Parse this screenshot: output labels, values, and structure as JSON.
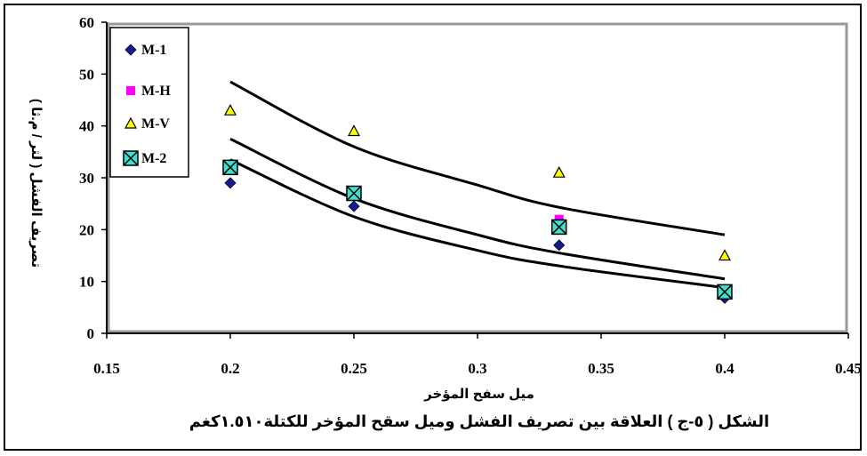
{
  "chart_data": {
    "type": "scatter",
    "title": "الشكل ( ٥-ج ) العلاقة بين تصريف الفشل وميل سقح المؤخر للكتلة١.٥١٠كغم",
    "xlabel": "ميل سفح المؤخر",
    "ylabel": "تصريف الفشل ( لتر / م.ثا )",
    "xlim": [
      0.15,
      0.45
    ],
    "ylim": [
      0,
      60
    ],
    "x_ticks": [
      "0.15",
      "0.2",
      "0.25",
      "0.3",
      "0.35",
      "0.4",
      "0.45"
    ],
    "y_ticks": [
      "0",
      "10",
      "20",
      "30",
      "40",
      "50",
      "60"
    ],
    "grid": false,
    "legend_position": "top-left",
    "series": [
      {
        "name": "M-1",
        "marker": "diamond",
        "color": "#1a1a8c",
        "x": [
          0.2,
          0.25,
          0.333,
          0.4
        ],
        "y": [
          29,
          24.5,
          17,
          6.8
        ]
      },
      {
        "name": "M-H",
        "marker": "square",
        "color": "#ff00ff",
        "x": [
          0.2,
          0.25,
          0.333,
          0.4
        ],
        "y": [
          32,
          27.5,
          22,
          8
        ]
      },
      {
        "name": "M-V",
        "marker": "triangle",
        "color": "#ffff00",
        "x": [
          0.2,
          0.25,
          0.333,
          0.4
        ],
        "y": [
          43,
          39,
          31,
          15
        ]
      },
      {
        "name": "M-2",
        "marker": "box-x",
        "color": "#40e0d0",
        "x": [
          0.2,
          0.25,
          0.333,
          0.4
        ],
        "y": [
          32,
          27,
          20.5,
          8
        ]
      }
    ],
    "trendlines": [
      {
        "x": [
          0.2,
          0.25,
          0.3,
          0.333,
          0.4
        ],
        "y": [
          48.5,
          36,
          28.6,
          24.3,
          19
        ]
      },
      {
        "x": [
          0.2,
          0.25,
          0.3,
          0.333,
          0.4
        ],
        "y": [
          37.5,
          26,
          19,
          15.5,
          10.5
        ]
      },
      {
        "x": [
          0.2,
          0.25,
          0.3,
          0.333,
          0.4
        ],
        "y": [
          33.5,
          22.5,
          16,
          13,
          8.8
        ]
      }
    ]
  }
}
